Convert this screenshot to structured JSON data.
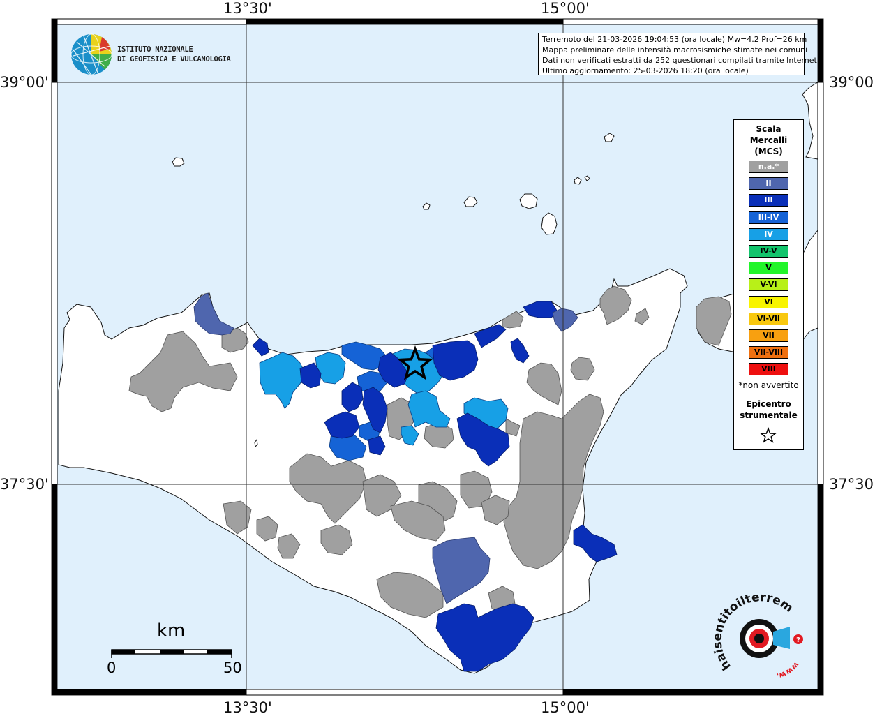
{
  "map": {
    "lon_labels": [
      "13°30'",
      "15°00'"
    ],
    "lat_labels": [
      "39°00'",
      "37°30'"
    ],
    "colors": {
      "sea": "#e0f0fc",
      "land": "#ffffff",
      "not_felt": "#a0a0a0",
      "II": "#4f66ae",
      "III": "#0a2fb8",
      "III-IV": "#1563d6",
      "IV": "#17a0e6"
    }
  },
  "institute": {
    "name_line1": "ISTITUTO NAZIONALE",
    "name_line2": "DI GEOFISICA E VULCANOLOGIA",
    "logo_icon": "ingv-globe-icon"
  },
  "info": {
    "line1": "Terremoto del 21-03-2026 19:04:53 (ora locale) Mw=4.2 Prof=26 km",
    "line2": "Mappa preliminare delle intensità macrosismiche stimate nei comuni",
    "line3": "Dati non verificati estratti da 252 questionari compilati tramite Internet.",
    "line4": "Ultimo aggiornamento: 25-03-2026 18:20 (ora locale)"
  },
  "legend": {
    "title_line1": "Scala",
    "title_line2": "Mercalli",
    "title_line3": "(MCS)",
    "items": [
      {
        "label": "n.a.*",
        "color": "#a0a0a0",
        "text_color": "#ffffff"
      },
      {
        "label": "II",
        "color": "#4f66ae",
        "text_color": "#ffffff"
      },
      {
        "label": "III",
        "color": "#0a2fb8",
        "text_color": "#ffffff"
      },
      {
        "label": "III-IV",
        "color": "#1563d6",
        "text_color": "#ffffff"
      },
      {
        "label": "IV",
        "color": "#17a0e6",
        "text_color": "#ffffff"
      },
      {
        "label": "IV-V",
        "color": "#12c46c",
        "text_color": "#000000"
      },
      {
        "label": "V",
        "color": "#22f52a",
        "text_color": "#000000"
      },
      {
        "label": "V-VI",
        "color": "#b8f018",
        "text_color": "#000000"
      },
      {
        "label": "VI",
        "color": "#f8f400",
        "text_color": "#000000"
      },
      {
        "label": "VI-VII",
        "color": "#f8c810",
        "text_color": "#000000"
      },
      {
        "label": "VII",
        "color": "#f8a010",
        "text_color": "#000000"
      },
      {
        "label": "VII-VIII",
        "color": "#f07010",
        "text_color": "#000000"
      },
      {
        "label": "VIII",
        "color": "#ee1010",
        "text_color": "#000000"
      }
    ],
    "note": "*non avvertito",
    "epicenter_line1": "Epicentro",
    "epicenter_line2": "strumentale",
    "epicenter_icon": "star-icon"
  },
  "scale_bar": {
    "unit": "km",
    "start": "0",
    "end": "50"
  },
  "hsit_logo": {
    "text": "haisentitoilterremoto.it",
    "url_text": "www.",
    "icon": "hsit-target-icon"
  }
}
